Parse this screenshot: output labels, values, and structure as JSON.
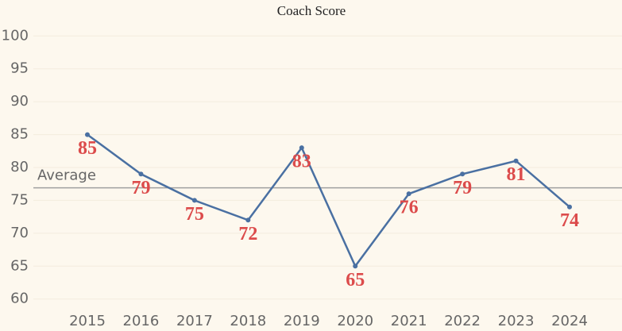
{
  "chart_data": {
    "type": "line",
    "title": "Coach Score",
    "categories": [
      "2015",
      "2016",
      "2017",
      "2018",
      "2019",
      "2020",
      "2021",
      "2022",
      "2023",
      "2024"
    ],
    "values": [
      85,
      79,
      75,
      72,
      83,
      65,
      76,
      79,
      81,
      74
    ],
    "color": "#4a70a2",
    "label_color": "#dc4b4b",
    "ylim": [
      59,
      101
    ],
    "yticks": [
      60,
      65,
      70,
      75,
      80,
      85,
      90,
      95,
      100
    ],
    "grid": true,
    "average_line": {
      "label": "Average",
      "value": 76.9,
      "color": "#a0a0a0"
    }
  }
}
